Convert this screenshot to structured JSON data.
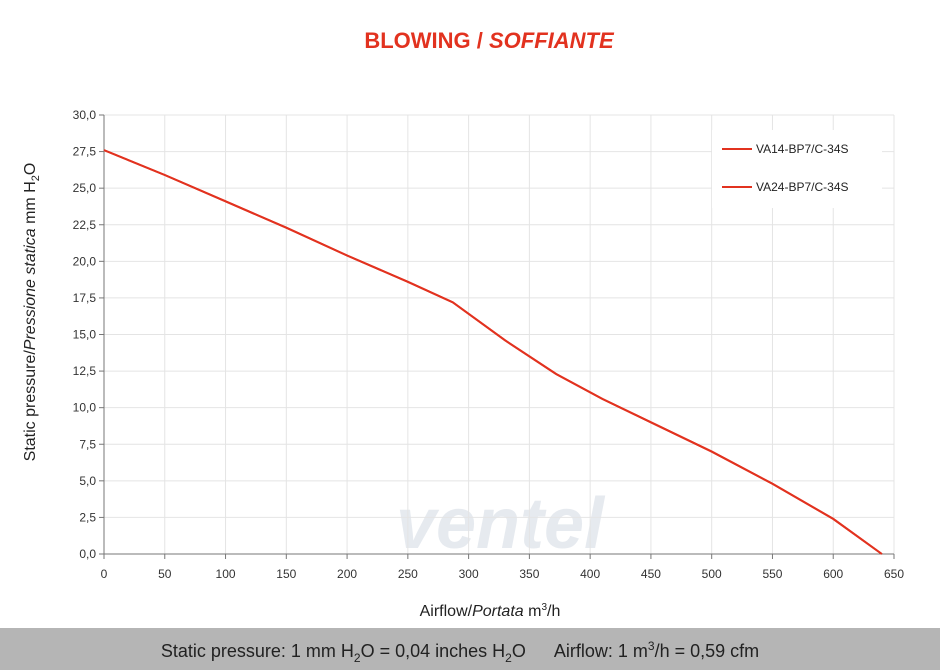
{
  "chart_data": {
    "type": "line",
    "title": [
      "BLOWING /",
      "SOFFIANTE"
    ],
    "y_label": [
      "Static pressure/",
      "Pressione statica",
      "mm  H",
      "2",
      "O"
    ],
    "x_label": [
      "Airflow/",
      "Portata",
      "m",
      "3",
      "/h"
    ],
    "footer": [
      "Static pressure: 1 mm H",
      "2",
      "O = 0,04 inches H",
      "2",
      "O",
      "Airflow: 1 m",
      "3",
      "/h = 0,59 cfm"
    ],
    "watermark": "ventel",
    "x": [
      0,
      50,
      100,
      150,
      200,
      250,
      287,
      330,
      372,
      410,
      450,
      500,
      550,
      600,
      640
    ],
    "series": [
      {
        "name": "VA14-BP7/C-34S",
        "color": "#e2321f",
        "values": [
          27.6,
          25.9,
          24.1,
          22.3,
          20.4,
          18.6,
          17.2,
          14.6,
          12.3,
          10.6,
          9.0,
          7.0,
          4.8,
          2.4,
          0.0
        ]
      },
      {
        "name": "VA24-BP7/C-34S",
        "color": "#e2321f",
        "values": [
          27.6,
          25.9,
          24.1,
          22.3,
          20.4,
          18.6,
          17.2,
          14.6,
          12.3,
          10.6,
          9.0,
          7.0,
          4.8,
          2.4,
          0.0
        ]
      }
    ],
    "xlim": [
      0,
      650
    ],
    "xticks": [
      0,
      50,
      100,
      150,
      200,
      250,
      300,
      350,
      400,
      450,
      500,
      550,
      600,
      650
    ],
    "ylim": [
      0,
      30
    ],
    "yticks": [
      {
        "value": 0,
        "label": "0,0"
      },
      {
        "value": 2.5,
        "label": "2,5"
      },
      {
        "value": 5,
        "label": "5,0"
      },
      {
        "value": 7.5,
        "label": "7,5"
      },
      {
        "value": 10,
        "label": "10,0"
      },
      {
        "value": 12.5,
        "label": "12,5"
      },
      {
        "value": 15,
        "label": "15,0"
      },
      {
        "value": 17.5,
        "label": "17,5"
      },
      {
        "value": 20,
        "label": "20,0"
      },
      {
        "value": 22.5,
        "label": "22,5"
      },
      {
        "value": 25,
        "label": "25,0"
      },
      {
        "value": 27.5,
        "label": "27,5"
      },
      {
        "value": 30,
        "label": "30,0"
      }
    ],
    "grid": true,
    "legend": "top-right"
  }
}
